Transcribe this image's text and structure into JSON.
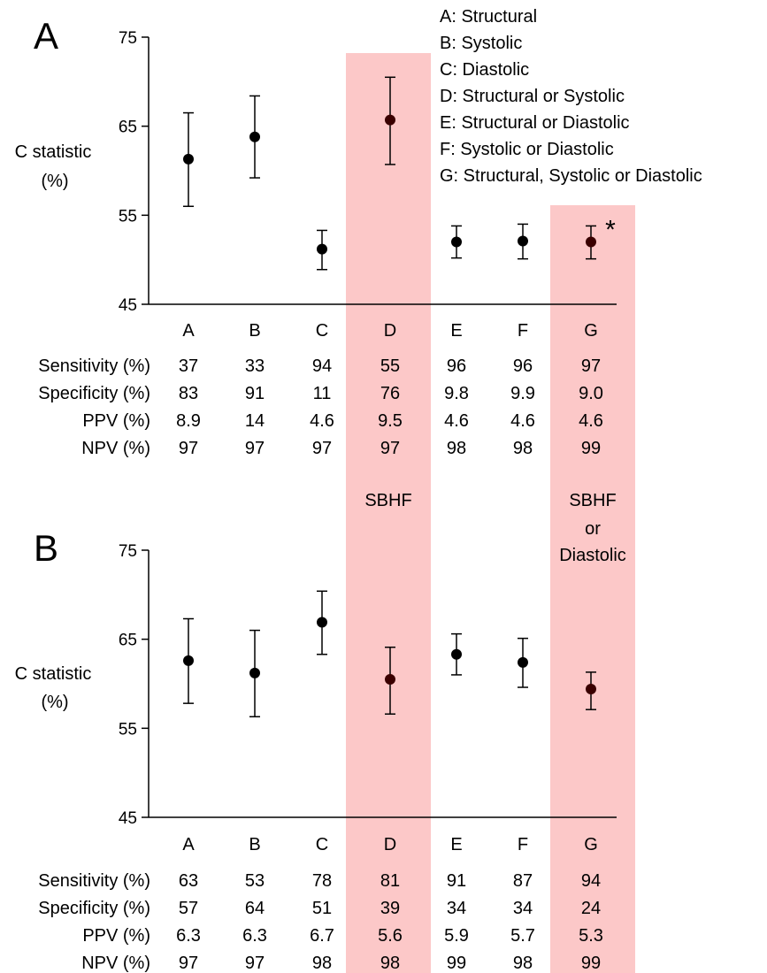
{
  "colors": {
    "highlight": "#fcc8c8",
    "marker": "#000000",
    "marker_highlighted": "#3a0000"
  },
  "legend": [
    "A: Structural",
    "B: Systolic",
    "C: Diastolic",
    "D: Structural or Systolic",
    "E: Structural or Diastolic",
    "F: Systolic or Diastolic",
    "G: Structural, Systolic or Diastolic"
  ],
  "highlight_labels": {
    "D": [
      "SBHF"
    ],
    "G": [
      "SBHF",
      "or",
      "Diastolic"
    ]
  },
  "chart_data": [
    {
      "type": "scatter",
      "panel": "A",
      "ylabel": [
        "C statistic",
        "(%)"
      ],
      "ylim": [
        45,
        75
      ],
      "yticks": [
        45,
        55,
        65,
        75
      ],
      "categories": [
        "A",
        "B",
        "C",
        "D",
        "E",
        "F",
        "G"
      ],
      "highlighted": [
        "D",
        "G"
      ],
      "annotation": {
        "category": "G",
        "text": "*"
      },
      "series": [
        {
          "values": [
            61.3,
            63.8,
            51.2,
            65.7,
            52.0,
            52.1,
            52.0
          ],
          "lower": [
            56.0,
            59.2,
            48.9,
            60.7,
            50.2,
            50.1,
            50.1
          ],
          "upper": [
            66.5,
            68.4,
            53.3,
            70.5,
            53.8,
            54.0,
            53.8
          ]
        }
      ],
      "table": {
        "rows": [
          {
            "label": "Sensitivity (%)",
            "values": [
              "37",
              "33",
              "94",
              "55",
              "96",
              "96",
              "97"
            ]
          },
          {
            "label": "Specificity (%)",
            "values": [
              "83",
              "91",
              "11",
              "76",
              "9.8",
              "9.9",
              "9.0"
            ]
          },
          {
            "label": "PPV (%)",
            "values": [
              "8.9",
              "14",
              "4.6",
              "9.5",
              "4.6",
              "4.6",
              "4.6"
            ]
          },
          {
            "label": "NPV (%)",
            "values": [
              "97",
              "97",
              "97",
              "97",
              "98",
              "98",
              "99"
            ]
          }
        ]
      }
    },
    {
      "type": "scatter",
      "panel": "B",
      "ylabel": [
        "C statistic",
        "(%)"
      ],
      "ylim": [
        45,
        75
      ],
      "yticks": [
        45,
        55,
        65,
        75
      ],
      "categories": [
        "A",
        "B",
        "C",
        "D",
        "E",
        "F",
        "G"
      ],
      "highlighted": [
        "D",
        "G"
      ],
      "series": [
        {
          "values": [
            62.6,
            61.2,
            66.9,
            60.5,
            63.3,
            62.4,
            59.4
          ],
          "lower": [
            57.8,
            56.3,
            63.3,
            56.6,
            61.0,
            59.6,
            57.1
          ],
          "upper": [
            67.3,
            66.0,
            70.4,
            64.1,
            65.6,
            65.1,
            61.3
          ]
        }
      ],
      "table": {
        "rows": [
          {
            "label": "Sensitivity (%)",
            "values": [
              "63",
              "53",
              "78",
              "81",
              "91",
              "87",
              "94"
            ]
          },
          {
            "label": "Specificity (%)",
            "values": [
              "57",
              "64",
              "51",
              "39",
              "34",
              "34",
              "24"
            ]
          },
          {
            "label": "PPV (%)",
            "values": [
              "6.3",
              "6.3",
              "6.7",
              "5.6",
              "5.9",
              "5.7",
              "5.3"
            ]
          },
          {
            "label": "NPV (%)",
            "values": [
              "97",
              "97",
              "98",
              "98",
              "99",
              "98",
              "99"
            ]
          }
        ]
      }
    }
  ]
}
